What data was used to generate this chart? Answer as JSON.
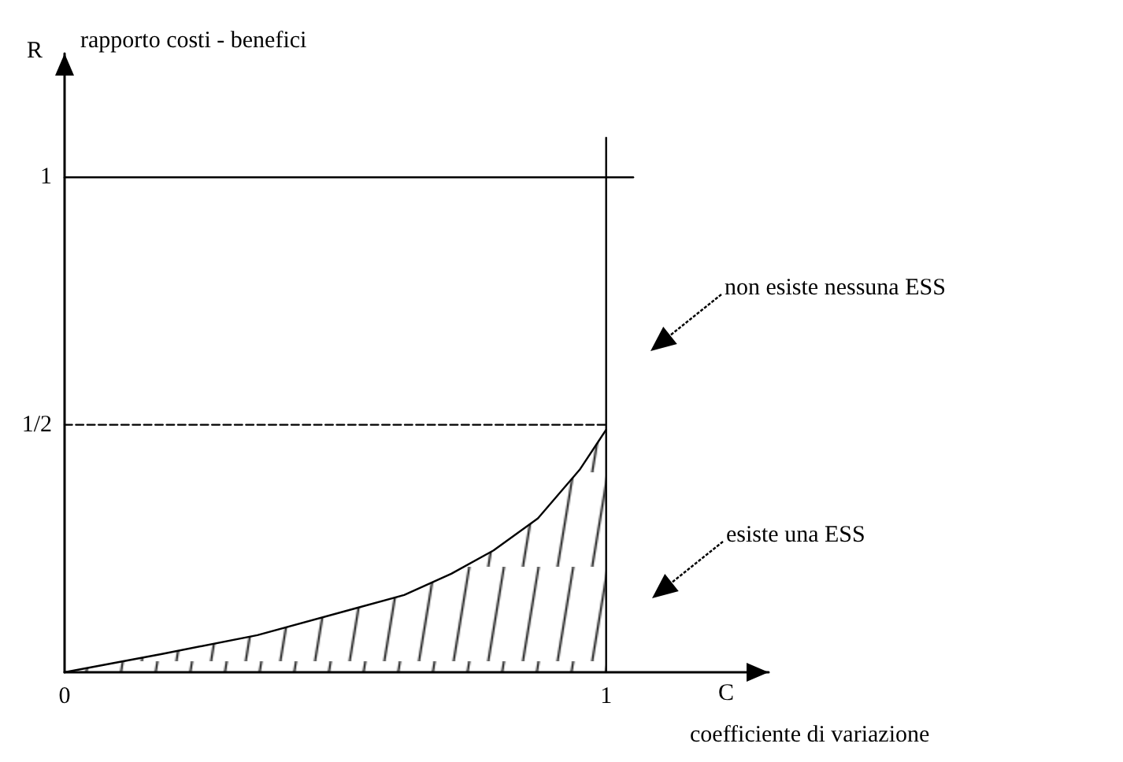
{
  "chart_data": {
    "type": "area",
    "xlabel": "C",
    "ylabel": "R",
    "xlim": [
      0,
      1.3
    ],
    "ylim": [
      0,
      1.25
    ],
    "xticks": [
      0,
      1
    ],
    "yticks": [
      {
        "value": 0.5,
        "label": "1/2"
      },
      1
    ],
    "grid": false,
    "marker": "none",
    "series": [
      {
        "color": "#000000",
        "line_style": "solid",
        "x": [
          0,
          0.18,
          0.356,
          0.54,
          0.627,
          0.714,
          0.792,
          0.874,
          0.951,
          1
        ],
        "values": [
          0,
          0.037,
          0.075,
          0.13,
          0.156,
          0.199,
          0.246,
          0.311,
          0.409,
          0.49
        ]
      },
      {
        "type": "line",
        "color": "#000000",
        "line_style": "solid",
        "x": [
          0,
          1.05
        ],
        "values": [
          1,
          1
        ]
      },
      {
        "type": "line",
        "color": "#000000",
        "line_style": "dashed",
        "x": [
          0,
          1
        ],
        "values": [
          0.5,
          0.5
        ]
      },
      {
        "type": "line",
        "color": "#000000",
        "line_style": "solid",
        "x": [
          1,
          1
        ],
        "values": [
          0,
          1.08
        ]
      }
    ],
    "annotations": [
      "rapporto costi - benefici",
      "coefficiente di variazione",
      "non esiste nessuna ESS",
      "esiste una ESS"
    ]
  }
}
